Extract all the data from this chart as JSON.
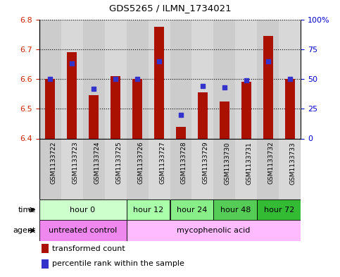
{
  "title": "GDS5265 / ILMN_1734021",
  "samples": [
    "GSM1133722",
    "GSM1133723",
    "GSM1133724",
    "GSM1133725",
    "GSM1133726",
    "GSM1133727",
    "GSM1133728",
    "GSM1133729",
    "GSM1133730",
    "GSM1133731",
    "GSM1133732",
    "GSM1133733"
  ],
  "transformed_count": [
    6.6,
    6.69,
    6.545,
    6.61,
    6.6,
    6.775,
    6.44,
    6.555,
    6.525,
    6.59,
    6.745,
    6.6
  ],
  "percentile_rank": [
    50,
    63,
    42,
    50,
    50,
    65,
    20,
    44,
    43,
    49,
    65,
    50
  ],
  "ylim_left": [
    6.4,
    6.8
  ],
  "ylim_right": [
    0,
    100
  ],
  "yticks_left": [
    6.4,
    6.5,
    6.6,
    6.7,
    6.8
  ],
  "yticks_right": [
    0,
    25,
    50,
    75,
    100
  ],
  "bar_color": "#aa1100",
  "dot_color": "#3333cc",
  "bar_bottom": 6.4,
  "time_groups": [
    {
      "label": "hour 0",
      "start": 0,
      "end": 4,
      "color": "#ccffcc"
    },
    {
      "label": "hour 12",
      "start": 4,
      "end": 6,
      "color": "#aaffaa"
    },
    {
      "label": "hour 24",
      "start": 6,
      "end": 8,
      "color": "#88ee88"
    },
    {
      "label": "hour 48",
      "start": 8,
      "end": 10,
      "color": "#55cc55"
    },
    {
      "label": "hour 72",
      "start": 10,
      "end": 12,
      "color": "#33bb33"
    }
  ],
  "agent_untreated_color": "#ee88ee",
  "agent_myco_color": "#ffbbff",
  "legend_bar_label": "transformed count",
  "legend_dot_label": "percentile rank within the sample",
  "tick_label_color_left": "#cc2200",
  "tick_label_color_right": "#0000cc",
  "col_colors": [
    "#cccccc",
    "#d8d8d8"
  ],
  "n_samples": 12,
  "figwidth": 4.83,
  "figheight": 3.93,
  "dpi": 100
}
